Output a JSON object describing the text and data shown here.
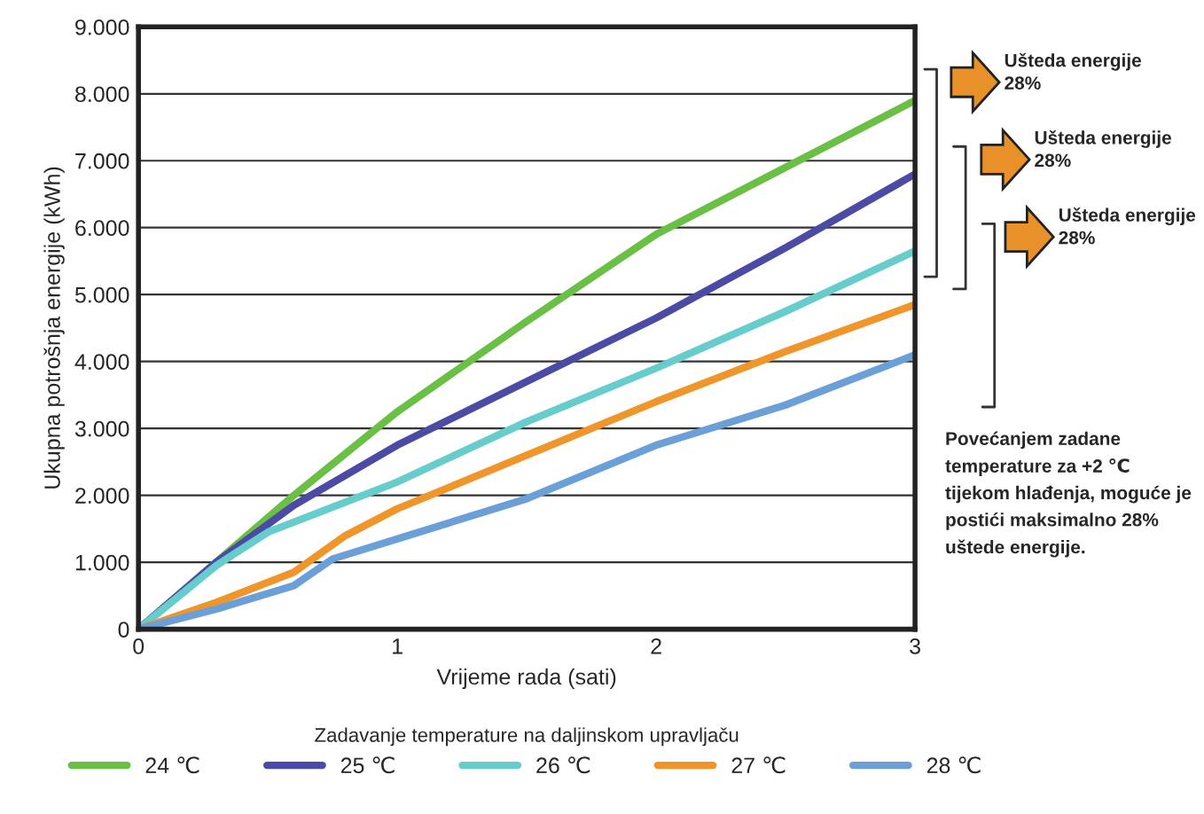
{
  "chart_data": {
    "type": "line",
    "xlabel": "Vrijeme rada (sati)",
    "ylabel": "Ukupna potrošnja energije (kWh)",
    "legend_title": "Zadavanje temperature na daljinskom upravljaču",
    "series": [
      {
        "name": "24 ℃",
        "color": "#6abf45",
        "x": [
          0,
          0.3,
          0.6,
          1,
          1.5,
          2,
          2.5,
          3
        ],
        "values": [
          0,
          1000,
          2000,
          3250,
          4600,
          5900,
          6900,
          7900
        ]
      },
      {
        "name": "25 ℃",
        "color": "#4b4ba6",
        "x": [
          0,
          0.3,
          0.6,
          1,
          1.5,
          2,
          2.5,
          3
        ],
        "values": [
          0,
          1000,
          1850,
          2750,
          3700,
          4650,
          5700,
          6800
        ]
      },
      {
        "name": "26 ℃",
        "color": "#66cccc",
        "x": [
          0,
          0.3,
          0.5,
          0.6,
          1,
          1.5,
          2,
          2.5,
          3
        ],
        "values": [
          0,
          950,
          1450,
          1600,
          2200,
          3100,
          3900,
          4750,
          5650
        ]
      },
      {
        "name": "27 ℃",
        "color": "#f0952a",
        "x": [
          0,
          0.3,
          0.6,
          0.8,
          1,
          1.5,
          2,
          2.5,
          3
        ],
        "values": [
          0,
          400,
          850,
          1400,
          1800,
          2600,
          3400,
          4150,
          4850
        ]
      },
      {
        "name": "28 ℃",
        "color": "#6a9fd8",
        "x": [
          0,
          0.3,
          0.6,
          0.75,
          1,
          1.5,
          2,
          2.5,
          3
        ],
        "values": [
          0,
          300,
          650,
          1050,
          1350,
          1950,
          2750,
          3350,
          4100
        ]
      }
    ],
    "xlim": [
      0,
      3
    ],
    "xticks": [
      0,
      1,
      2,
      3
    ],
    "ylim": [
      0,
      9000
    ],
    "yticks": [
      0,
      {
        "value": 1000,
        "label": "1.000"
      },
      {
        "value": 2000,
        "label": "2.000"
      },
      {
        "value": 3000,
        "label": "3.000"
      },
      {
        "value": 4000,
        "label": "4.000"
      },
      {
        "value": 5000,
        "label": "5.000"
      },
      {
        "value": 6000,
        "label": "6.000"
      },
      {
        "value": 7000,
        "label": "7.000"
      },
      {
        "value": 8000,
        "label": "8.000"
      },
      {
        "value": 9000,
        "label": "9.000"
      }
    ],
    "grid": "y",
    "legend": "bottom",
    "line_style": "solid",
    "marker": "none",
    "annotations": [
      "Ušteda energije\n28%",
      "Ušteda energije\n28%",
      "Ušteda energije\n28%",
      "Povećanjem zadane\ntemperature za +2 ℃\ntijekom hlađenja, moguće je\npostići maksimalno 28%\nuštede energije."
    ]
  }
}
